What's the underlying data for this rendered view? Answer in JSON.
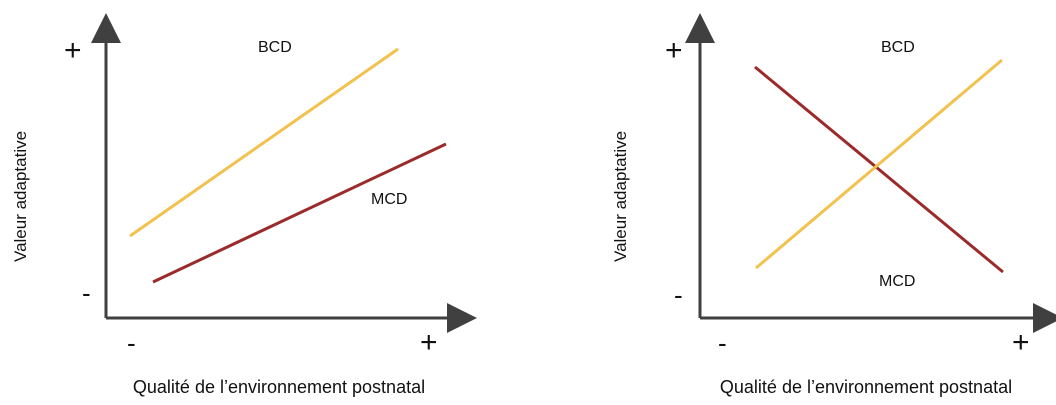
{
  "colors": {
    "axis": "#404040",
    "bcd": "#f2c14e",
    "mcd": "#9b2a2a"
  },
  "panels": [
    {
      "ylabel": "Valeur adaptative",
      "xlabel": "Qualité de l’environnement postnatal",
      "y_plus": "+",
      "y_minus": "-",
      "x_minus": "-",
      "x_plus": "+",
      "bcd_label": "BCD",
      "mcd_label": "MCD"
    },
    {
      "ylabel": "Valeur adaptative",
      "xlabel": "Qualité de l’environnement postnatal",
      "y_plus": "+",
      "y_minus": "-",
      "x_minus": "-",
      "x_plus": "+",
      "bcd_label": "BCD",
      "mcd_label": "MCD"
    }
  ]
}
